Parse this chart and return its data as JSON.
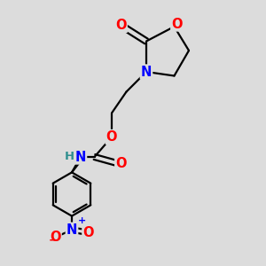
{
  "bg_color": "#dcdcdc",
  "bond_color": "#000000",
  "bond_width": 1.6,
  "atom_colors": {
    "O": "#ff0000",
    "N": "#0000ff",
    "NH_color": "#2f8f8f",
    "C": "#000000",
    "H": "#777777"
  },
  "font_size": 10.5,
  "fig_width": 3.0,
  "fig_height": 3.0,
  "dpi": 100,
  "xlim": [
    0,
    10
  ],
  "ylim": [
    0,
    10
  ]
}
